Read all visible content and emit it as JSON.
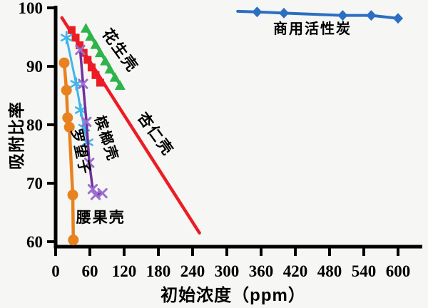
{
  "chart_data": {
    "type": "line",
    "title": "",
    "xlabel": "初始浓度（ppm）",
    "ylabel": "吸附比率",
    "grid": false,
    "legend": "inline-annotations",
    "x_axis": {
      "min": 0,
      "max": 600,
      "tick_step": 60,
      "ticks": [
        0,
        60,
        120,
        180,
        240,
        300,
        360,
        420,
        480,
        540,
        600
      ]
    },
    "y_axis": {
      "min": 60,
      "max": 100,
      "tick_step": 10,
      "ticks": [
        100,
        90,
        80,
        70,
        60
      ]
    },
    "series": [
      {
        "key": "almond-shell",
        "name": "杏仁壳",
        "color": "#ec1c24",
        "marker": "square",
        "points": [
          [
            28,
            96.2
          ],
          [
            35,
            94.9
          ],
          [
            42,
            93.6
          ],
          [
            49,
            92.3
          ],
          [
            56,
            91.1
          ],
          [
            63,
            89.8
          ],
          [
            70,
            88.5
          ],
          [
            78,
            87.2
          ]
        ],
        "trend_line": [
          [
            11,
            98.3
          ],
          [
            252,
            61.5
          ]
        ]
      },
      {
        "key": "peanut-shell",
        "name": "花生壳",
        "color": "#2eb44a",
        "marker": "triangle",
        "points": [
          [
            53,
            96.5
          ],
          [
            61,
            95.1
          ],
          [
            70,
            93.7
          ],
          [
            78,
            92.3
          ],
          [
            87,
            90.9
          ],
          [
            95,
            89.5
          ],
          [
            104,
            88.1
          ],
          [
            113,
            86.7
          ]
        ]
      },
      {
        "key": "tamarind",
        "name": "罗望子",
        "color": "#3fb6e8",
        "marker": "asterisk",
        "points": [
          [
            19,
            94.9
          ],
          [
            36,
            87.0
          ],
          [
            44,
            82.5
          ],
          [
            50,
            79.5
          ],
          [
            56,
            77.0
          ]
        ]
      },
      {
        "key": "areca-shell",
        "name": "槟榔壳",
        "color": "#7030a0",
        "marker_color": "#9a6fd0",
        "marker": "x",
        "points": [
          [
            43,
            92.8
          ],
          [
            48,
            87.0
          ],
          [
            54,
            80.5
          ],
          [
            59,
            73.5
          ],
          [
            65,
            69.0
          ],
          [
            70,
            68.0
          ],
          [
            82,
            68.3
          ]
        ]
      },
      {
        "key": "cashew-shell",
        "name": "腰果壳",
        "color": "#e8821e",
        "marker": "circle",
        "points": [
          [
            15,
            90.6
          ],
          [
            19,
            85.9
          ],
          [
            21,
            81.2
          ],
          [
            24,
            79.6
          ],
          [
            30,
            68.0
          ],
          [
            31,
            60.3
          ]
        ]
      },
      {
        "key": "activated-carbon",
        "name": "商用活性炭",
        "color": "#2a6fc1",
        "marker": "diamond",
        "line_start": [
          319,
          99.4
        ],
        "points": [
          [
            353,
            99.3
          ],
          [
            400,
            99.1
          ],
          [
            503,
            98.7
          ],
          [
            553,
            98.7
          ],
          [
            600,
            98.2
          ]
        ]
      }
    ],
    "annotations": [
      {
        "key": "peanut-shell",
        "text": "花生壳",
        "x_ppm": 106,
        "y_val": 92.2,
        "rotate": 54,
        "size": 21
      },
      {
        "key": "almond-shell",
        "text": "杏仁壳",
        "x_ppm": 168,
        "y_val": 77.9,
        "rotate": 54,
        "size": 21
      },
      {
        "key": "areca-shell",
        "text": "槟榔壳",
        "x_ppm": 81,
        "y_val": 77.4,
        "rotate": 72,
        "size": 20
      },
      {
        "key": "tamarind",
        "text": "罗望子",
        "x_ppm": 36,
        "y_val": 75.2,
        "rotate": 78,
        "size": 20
      },
      {
        "key": "cashew-shell",
        "text": "腰果壳",
        "x_ppm": 79,
        "y_val": 63.3,
        "rotate": 0,
        "size": 21
      },
      {
        "key": "activated-carbon",
        "text": "商用活性炭",
        "x_ppm": 450,
        "y_val": 95.6,
        "rotate": 0,
        "size": 20
      }
    ]
  }
}
